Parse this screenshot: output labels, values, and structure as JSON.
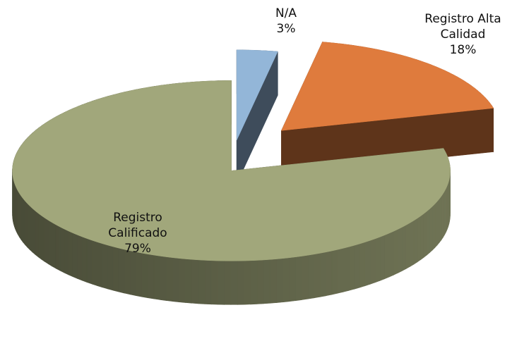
{
  "chart_data": {
    "type": "pie",
    "categories": [
      "N/A",
      "Registro Alta Calidad",
      "Registro Calificado"
    ],
    "values": [
      3,
      18,
      79
    ],
    "value_labels": [
      "3%",
      "18%",
      "79%"
    ],
    "colors": [
      "#93b6d8",
      "#df7b3d",
      "#a1a77b"
    ]
  }
}
